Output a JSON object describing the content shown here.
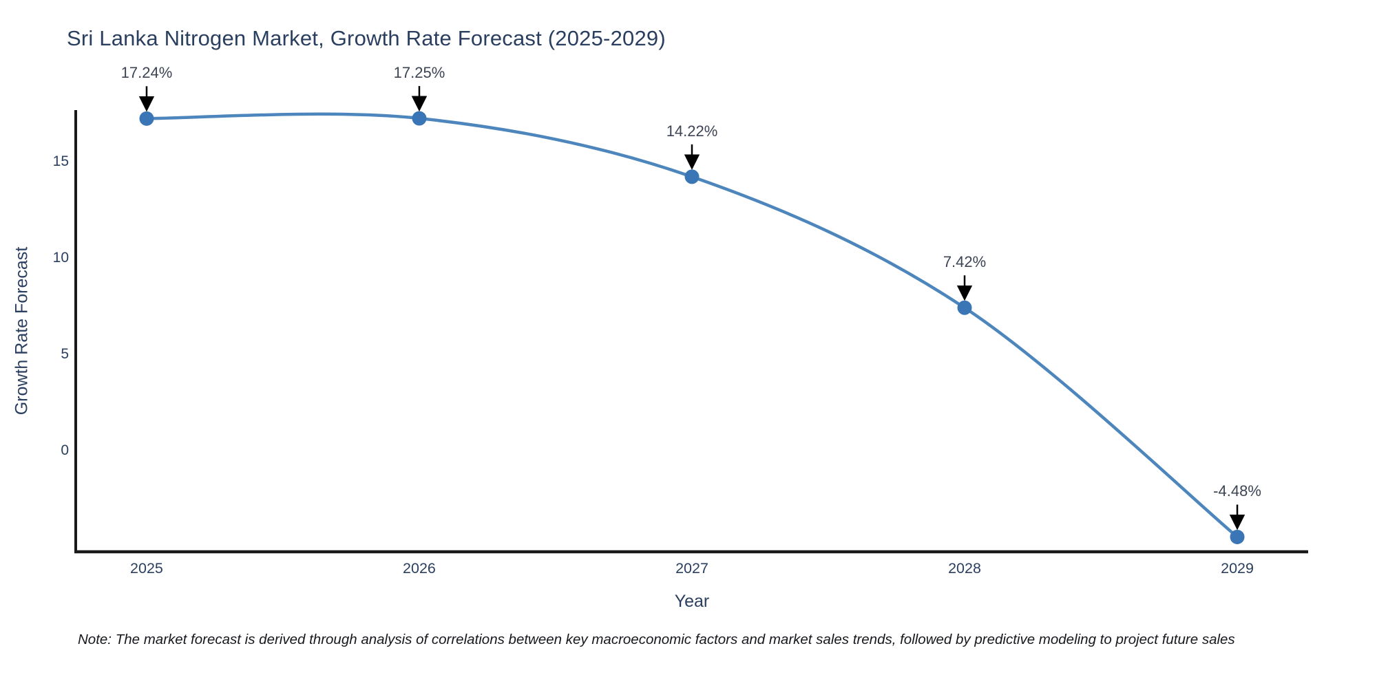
{
  "chart_data": {
    "type": "line",
    "line_shape": "spline",
    "title": "Sri Lanka Nitrogen Market, Growth Rate Forecast (2025-2029)",
    "xlabel": "Year",
    "ylabel": "Growth Rate Forecast",
    "x": [
      2025,
      2026,
      2027,
      2028,
      2029
    ],
    "x_tick_labels": [
      "2025",
      "2026",
      "2027",
      "2028",
      "2029"
    ],
    "values": [
      17.24,
      17.25,
      14.22,
      7.42,
      -4.48
    ],
    "point_labels": [
      "17.24%",
      "17.25%",
      "14.22%",
      "7.42%",
      "-4.48%"
    ],
    "y_ticks": [
      0,
      5,
      10,
      15
    ],
    "y_tick_labels": [
      "0",
      "5",
      "10",
      "15"
    ],
    "ylim": [
      -5.25,
      17.68
    ],
    "xlim": [
      2024.74,
      2029.26
    ],
    "grid": false,
    "legend": false,
    "annotations_style": "value label with black arrow pointing down to marker",
    "colors": {
      "line": "#4d86bc",
      "marker": "#3a76b5",
      "axis": "#1a1a1a",
      "arrow": "#000000",
      "text": "#2a3f5f",
      "annotation_text": "#3c4454",
      "note_text": "#16181d",
      "background": "#ffffff"
    },
    "note": "Note: The market forecast is derived through analysis of correlations between key macroeconomic factors and market sales trends, followed by predictive modeling to project future sales"
  }
}
